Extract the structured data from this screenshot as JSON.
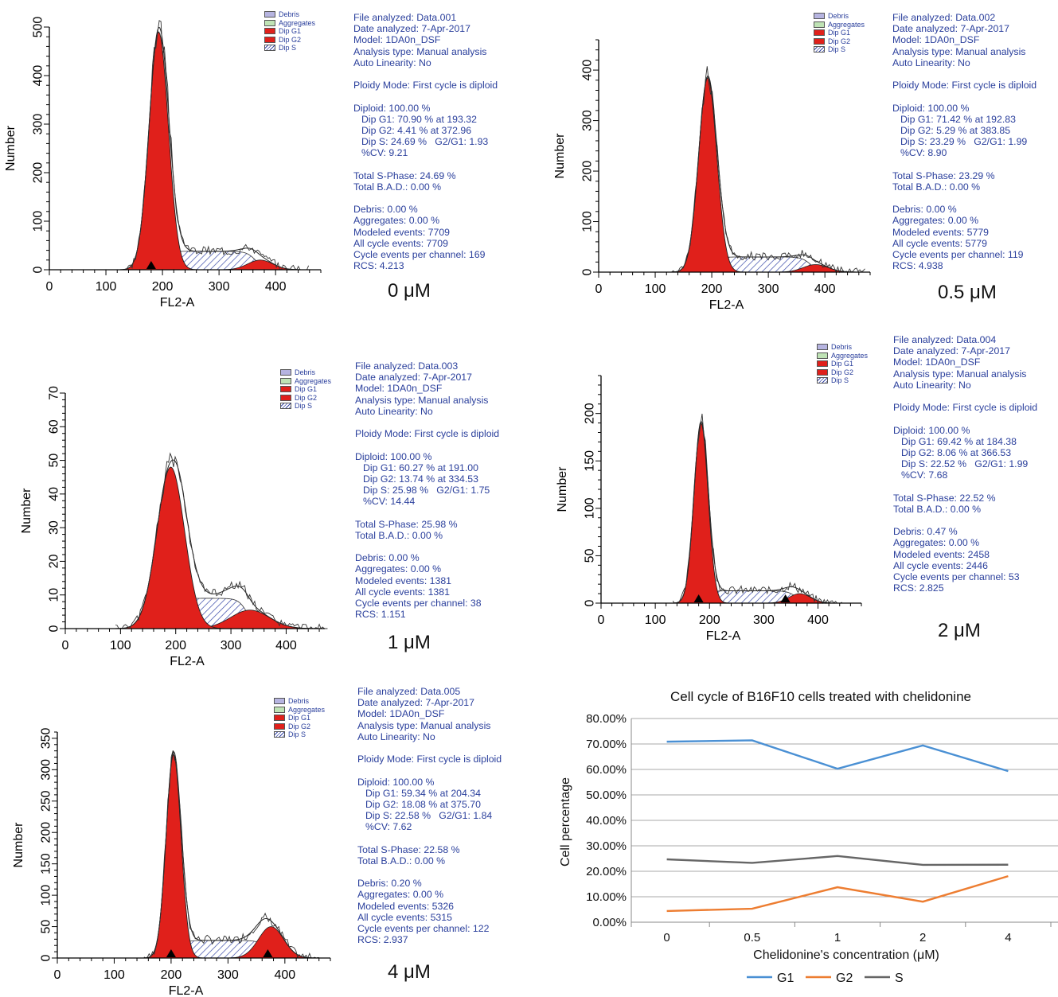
{
  "colors": {
    "g1_fill": "#e0201b",
    "g2_fill": "#e0201b",
    "s_hatch": "#3848a8",
    "debris": "#b6b4e0",
    "aggregates": "#bfe3b5",
    "info_text": "#2a3f9c",
    "line_g1": "#4a90d4",
    "line_g2": "#ed7d31",
    "line_s": "#666666"
  },
  "legend_items": [
    "Debris",
    "Aggregates",
    "Dip G1",
    "Dip G2",
    "Dip S"
  ],
  "panels": [
    {
      "conc": "0 μM",
      "info": {
        "file": "File analyzed: Data.001",
        "date": "Date analyzed: 7-Apr-2017",
        "model": "Model: 1DA0n_DSF",
        "analysis": "Analysis type: Manual analysis",
        "autolin": "Auto Linearity: No",
        "ploidy": "Ploidy Mode: First cycle is diploid",
        "diploid": "Diploid: 100.00 %",
        "g1": "Dip G1: 70.90 % at 193.32",
        "g2": "Dip G2: 4.41 % at 372.96",
        "s": "Dip S: 24.69 %   G2/G1: 1.93",
        "cv": "%CV: 9.21",
        "tsp": "Total S-Phase: 24.69 %",
        "bad": "Total B.A.D.: 0.00 %",
        "debris": "Debris: 0.00 %",
        "aggr": "Aggregates: 0.00 %",
        "mod": "Modeled events: 7709",
        "allc": "All cycle events: 7709",
        "cpc": "Cycle events per channel: 169",
        "rcs": "RCS: 4.213"
      }
    },
    {
      "conc": "0.5 μM",
      "info": {
        "file": "File analyzed: Data.002",
        "date": "Date analyzed: 7-Apr-2017",
        "model": "Model: 1DA0n_DSF",
        "analysis": "Analysis type: Manual analysis",
        "autolin": "Auto Linearity: No",
        "ploidy": "Ploidy Mode: First cycle is diploid",
        "diploid": "Diploid: 100.00 %",
        "g1": "Dip G1: 71.42 % at 192.83",
        "g2": "Dip G2: 5.29 % at 383.85",
        "s": "Dip S: 23.29 %   G2/G1: 1.99",
        "cv": "%CV: 8.90",
        "tsp": "Total S-Phase: 23.29 %",
        "bad": "Total B.A.D.: 0.00 %",
        "debris": "Debris: 0.00 %",
        "aggr": "Aggregates: 0.00 %",
        "mod": "Modeled events: 5779",
        "allc": "All cycle events: 5779",
        "cpc": "Cycle events per channel: 119",
        "rcs": "RCS: 4.938"
      }
    },
    {
      "conc": "1 μM",
      "info": {
        "file": "File analyzed: Data.003",
        "date": "Date analyzed: 7-Apr-2017",
        "model": "Model: 1DA0n_DSF",
        "analysis": "Analysis type: Manual analysis",
        "autolin": "Auto Linearity: No",
        "ploidy": "Ploidy Mode: First cycle is diploid",
        "diploid": "Diploid: 100.00 %",
        "g1": "Dip G1: 60.27 % at 191.00",
        "g2": "Dip G2: 13.74 % at 334.53",
        "s": "Dip S: 25.98 %   G2/G1: 1.75",
        "cv": "%CV: 14.44",
        "tsp": "Total S-Phase: 25.98 %",
        "bad": "Total B.A.D.: 0.00 %",
        "debris": "Debris: 0.00 %",
        "aggr": "Aggregates: 0.00 %",
        "mod": "Modeled events: 1381",
        "allc": "All cycle events: 1381",
        "cpc": "Cycle events per channel: 38",
        "rcs": "RCS: 1.151"
      }
    },
    {
      "conc": "2 μM",
      "info": {
        "file": "File analyzed: Data.004",
        "date": "Date analyzed: 7-Apr-2017",
        "model": "Model: 1DA0n_DSF",
        "analysis": "Analysis type: Manual analysis",
        "autolin": "Auto Linearity: No",
        "ploidy": "Ploidy Mode: First cycle is diploid",
        "diploid": "Diploid: 100.00 %",
        "g1": "Dip G1: 69.42 % at 184.38",
        "g2": "Dip G2: 8.06 % at 366.53",
        "s": "Dip S: 22.52 %   G2/G1: 1.99",
        "cv": "%CV: 7.68",
        "tsp": "Total S-Phase: 22.52 %",
        "bad": "Total B.A.D.: 0.00 %",
        "debris": "Debris: 0.47 %",
        "aggr": "Aggregates: 0.00 %",
        "mod": "Modeled events: 2458",
        "allc": "All cycle events: 2446",
        "cpc": "Cycle events per channel: 53",
        "rcs": "RCS: 2.825"
      }
    },
    {
      "conc": "4 μM",
      "info": {
        "file": "File analyzed: Data.005",
        "date": "Date analyzed: 7-Apr-2017",
        "model": "Model: 1DA0n_DSF",
        "analysis": "Analysis type: Manual analysis",
        "autolin": "Auto Linearity: No",
        "ploidy": "Ploidy Mode: First cycle is diploid",
        "diploid": "Diploid: 100.00 %",
        "g1": "Dip G1: 59.34 % at 204.34",
        "g2": "Dip G2: 18.08 % at 375.70",
        "s": "Dip S: 22.58 %   G2/G1: 1.84",
        "cv": "%CV: 7.62",
        "tsp": "Total S-Phase: 22.58 %",
        "bad": "Total B.A.D.: 0.00 %",
        "debris": "Debris: 0.20 %",
        "aggr": "Aggregates: 0.00 %",
        "mod": "Modeled events: 5326",
        "allc": "All cycle events: 5315",
        "cpc": "Cycle events per channel: 122",
        "rcs": "RCS: 2.937"
      }
    }
  ],
  "chart_data": [
    {
      "type": "area",
      "xlabel": "FL2-A",
      "ylabel": "Number",
      "xlim": [
        0,
        480
      ],
      "ylim": [
        0,
        500
      ],
      "xticks": [
        0,
        100,
        200,
        300,
        400
      ],
      "yticks": [
        0,
        100,
        200,
        300,
        400,
        500
      ],
      "g1": {
        "center": 193.32,
        "peak": 490,
        "sigma": 17
      },
      "g2": {
        "center": 372.96,
        "peak": 20,
        "sigma": 22
      },
      "s": {
        "start": 200,
        "end": 365,
        "height": 38
      },
      "markers": [
        180
      ]
    },
    {
      "type": "area",
      "xlabel": "FL2-A",
      "ylabel": "Number",
      "xlim": [
        0,
        480
      ],
      "ylim": [
        0,
        460
      ],
      "xticks": [
        0,
        100,
        200,
        300,
        400
      ],
      "yticks": [
        0,
        100,
        200,
        300,
        400
      ],
      "g1": {
        "center": 192.83,
        "peak": 385,
        "sigma": 16
      },
      "g2": {
        "center": 383.85,
        "peak": 15,
        "sigma": 22
      },
      "s": {
        "start": 205,
        "end": 375,
        "height": 30
      },
      "markers": []
    },
    {
      "type": "area",
      "xlabel": "FL2-A",
      "ylabel": "Number",
      "xlim": [
        0,
        470
      ],
      "ylim": [
        0,
        70
      ],
      "xticks": [
        0,
        100,
        200,
        300,
        400
      ],
      "yticks": [
        0,
        10,
        20,
        30,
        40,
        50,
        60,
        70
      ],
      "g1": {
        "center": 191.0,
        "peak": 48,
        "sigma": 25
      },
      "g2": {
        "center": 334.53,
        "peak": 5.5,
        "sigma": 35
      },
      "s": {
        "start": 200,
        "end": 330,
        "height": 9
      },
      "markers": []
    },
    {
      "type": "area",
      "xlabel": "FL2-A",
      "ylabel": "Number",
      "xlim": [
        0,
        480
      ],
      "ylim": [
        0,
        240
      ],
      "xticks": [
        0,
        100,
        200,
        300,
        400
      ],
      "yticks": [
        0,
        50,
        100,
        150,
        200
      ],
      "g1": {
        "center": 184.38,
        "peak": 190,
        "sigma": 13
      },
      "g2": {
        "center": 366.53,
        "peak": 10,
        "sigma": 20
      },
      "s": {
        "start": 195,
        "end": 360,
        "height": 13
      },
      "markers": [
        180,
        340
      ]
    },
    {
      "type": "area",
      "xlabel": "FL2-A",
      "ylabel": "Number",
      "xlim": [
        0,
        480
      ],
      "ylim": [
        0,
        360
      ],
      "xticks": [
        0,
        100,
        200,
        300,
        400
      ],
      "yticks": [
        0,
        50,
        100,
        150,
        200,
        250,
        300,
        350
      ],
      "g1": {
        "center": 204.34,
        "peak": 325,
        "sigma": 13
      },
      "g2": {
        "center": 375.7,
        "peak": 50,
        "sigma": 22
      },
      "s": {
        "start": 215,
        "end": 370,
        "height": 28
      },
      "markers": [
        200,
        370
      ]
    },
    {
      "type": "line",
      "title": "Cell cycle of B16F10 cells treated with chelidonine",
      "xlabel": "Chelidonine's concentration (μM)",
      "ylabel": "Cell percentage",
      "categories": [
        "0",
        "0.5",
        "1",
        "2",
        "4"
      ],
      "ylim": [
        0,
        80
      ],
      "yticks": [
        "0.00%",
        "10.00%",
        "20.00%",
        "30.00%",
        "40.00%",
        "50.00%",
        "60.00%",
        "70.00%",
        "80.00%"
      ],
      "grid": true,
      "legend": "bottom",
      "series": [
        {
          "name": "G1",
          "values": [
            70.9,
            71.42,
            60.27,
            69.42,
            59.34
          ]
        },
        {
          "name": "G2",
          "values": [
            4.41,
            5.29,
            13.74,
            8.06,
            18.08
          ]
        },
        {
          "name": "S",
          "values": [
            24.69,
            23.29,
            25.98,
            22.52,
            22.58
          ]
        }
      ]
    }
  ]
}
